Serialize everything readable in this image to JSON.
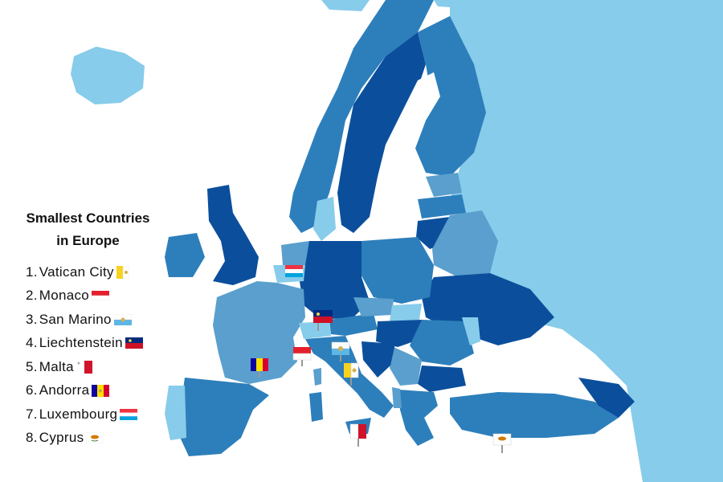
{
  "legend": {
    "title_line1": "Smallest Countries",
    "title_line2": "in Europe",
    "items": [
      {
        "rank": "1.",
        "name": "Vatican City",
        "flag_icon": "vatican-flag-icon",
        "flag_colors": [
          "#f7d21f",
          "#ffffff"
        ]
      },
      {
        "rank": "2.",
        "name": "Monaco",
        "flag_icon": "monaco-flag-icon",
        "flag_colors": [
          "#e4202c",
          "#ffffff"
        ]
      },
      {
        "rank": "3.",
        "name": "San Marino",
        "flag_icon": "san-marino-flag-icon",
        "flag_colors": [
          "#ffffff",
          "#5eb6e4"
        ]
      },
      {
        "rank": "4.",
        "name": "Liechtenstein",
        "flag_icon": "liechtenstein-flag-icon",
        "flag_colors": [
          "#002b7f",
          "#ce1126"
        ]
      },
      {
        "rank": "5.",
        "name": "Malta",
        "flag_icon": "malta-flag-icon",
        "flag_colors": [
          "#ffffff",
          "#cf142b"
        ]
      },
      {
        "rank": "6.",
        "name": "Andorra",
        "flag_icon": "andorra-flag-icon",
        "flag_colors": [
          "#10069f",
          "#fedf00",
          "#d50032"
        ]
      },
      {
        "rank": "7.",
        "name": "Luxembourg",
        "flag_icon": "luxembourg-flag-icon",
        "flag_colors": [
          "#ef3340",
          "#ffffff",
          "#00a3e0"
        ]
      },
      {
        "rank": "8.",
        "name": "Cyprus",
        "flag_icon": "cyprus-flag-icon",
        "flag_colors": [
          "#ffffff",
          "#d57800"
        ]
      }
    ]
  },
  "colors": {
    "sea": "#ffffff",
    "dark_blue": "#0b4f9c",
    "mid_blue": "#2d7fbb",
    "steel_blue": "#5a9fcd",
    "light_blue": "#87ccea",
    "pale_blue": "#9fd4ec"
  }
}
